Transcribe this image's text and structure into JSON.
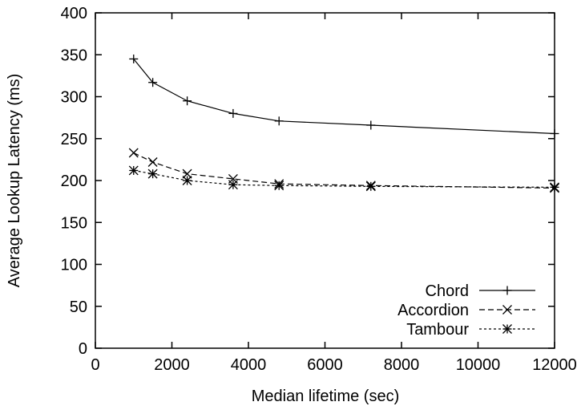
{
  "chart_data": {
    "type": "line",
    "title": "",
    "xlabel": "Median lifetime (sec)",
    "ylabel": "Average Lookup Latency (ms)",
    "xlim": [
      0,
      12000
    ],
    "ylim": [
      0,
      400
    ],
    "xticks": [
      0,
      2000,
      4000,
      6000,
      8000,
      10000,
      12000
    ],
    "yticks": [
      0,
      50,
      100,
      150,
      200,
      250,
      300,
      350,
      400
    ],
    "grid": false,
    "legend_position": "bottom-right",
    "x": [
      1000,
      1500,
      2400,
      3600,
      4800,
      7200,
      12000
    ],
    "series": [
      {
        "name": "Chord",
        "marker": "plus",
        "line_style": "solid",
        "values": [
          345,
          317,
          295,
          280,
          271,
          266,
          256
        ]
      },
      {
        "name": "Accordion",
        "marker": "cross",
        "line_style": "long-dash",
        "values": [
          233,
          222,
          208,
          202,
          196,
          194,
          191
        ]
      },
      {
        "name": "Tambour",
        "marker": "asterisk",
        "line_style": "short-dash",
        "values": [
          212,
          208,
          200,
          195,
          194,
          193,
          192
        ]
      }
    ]
  }
}
